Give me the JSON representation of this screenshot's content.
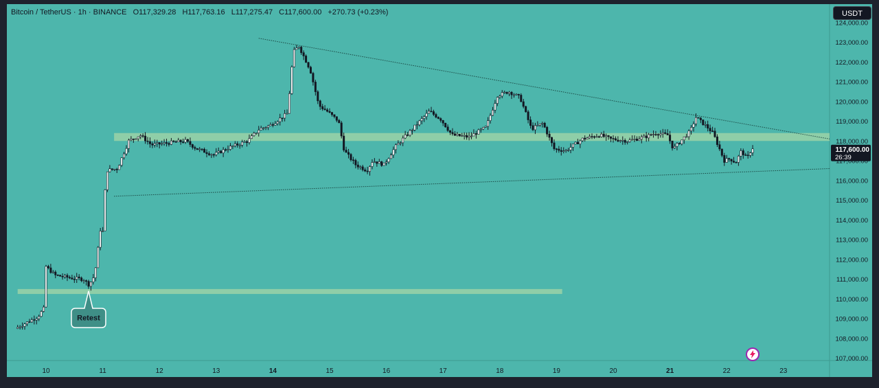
{
  "legend": {
    "symbol": "Bitcoin / TetherUS · 1h · BINANCE",
    "open": "O117,329.28",
    "high": "H117,763.16",
    "low": "L117,275.47",
    "close": "C117,600.00",
    "change": "+270.73 (+0.23%)"
  },
  "currency_button": "USDT",
  "price_label": {
    "price": "117,600.00",
    "countdown": "26:39"
  },
  "annotation": {
    "text": "Retest"
  },
  "colors": {
    "plot_bg": "#4db6ac",
    "frame": "#1e222d",
    "candle": "#131722",
    "zone": "#a5d6a7",
    "trendline": "#1c4a45",
    "axis_text": "#131722"
  },
  "chart_data": {
    "type": "candlestick",
    "symbol": "BTCUSDT",
    "interval": "1h",
    "ylim": [
      106800,
      124000
    ],
    "y_ticks": [
      107000,
      108000,
      109000,
      110000,
      111000,
      112000,
      113000,
      114000,
      115000,
      116000,
      117000,
      118000,
      119000,
      120000,
      121000,
      122000,
      123000,
      124000
    ],
    "y_tick_labels": [
      "107,000.00",
      "108,000.00",
      "109,000.00",
      "110,000.00",
      "111,000.00",
      "112,000.00",
      "113,000.00",
      "114,000.00",
      "115,000.00",
      "116,000.00",
      "117,000.00",
      "118,000.00",
      "119,000.00",
      "120,000.00",
      "121,000.00",
      "122,000.00",
      "123,000.00",
      "124,000.00"
    ],
    "x_ticks": [
      10,
      11,
      12,
      13,
      14,
      15,
      16,
      17,
      18,
      19,
      20,
      21,
      22,
      23
    ],
    "x_tick_labels": [
      "10",
      "11",
      "12",
      "13",
      "14",
      "15",
      "16",
      "17",
      "18",
      "19",
      "20",
      "21",
      "22",
      "23"
    ],
    "bold_x_ticks": [
      "14",
      "21"
    ],
    "price_path": [
      [
        9.5,
        108500
      ],
      [
        9.7,
        108800
      ],
      [
        9.9,
        109100
      ],
      [
        10.0,
        109500
      ],
      [
        10.02,
        111700
      ],
      [
        10.2,
        111200
      ],
      [
        10.5,
        111050
      ],
      [
        10.7,
        111000
      ],
      [
        10.8,
        110700
      ],
      [
        10.9,
        111200
      ],
      [
        11.0,
        113500
      ],
      [
        11.05,
        113400
      ],
      [
        11.1,
        116500
      ],
      [
        11.3,
        116600
      ],
      [
        11.5,
        118000
      ],
      [
        11.7,
        118300
      ],
      [
        11.9,
        117800
      ],
      [
        12.2,
        117900
      ],
      [
        12.5,
        118000
      ],
      [
        12.7,
        117600
      ],
      [
        13.0,
        117300
      ],
      [
        13.3,
        117700
      ],
      [
        13.6,
        118000
      ],
      [
        13.8,
        118600
      ],
      [
        14.0,
        118800
      ],
      [
        14.3,
        119400
      ],
      [
        14.4,
        122500
      ],
      [
        14.5,
        122800
      ],
      [
        14.7,
        121600
      ],
      [
        14.85,
        119800
      ],
      [
        15.0,
        119500
      ],
      [
        15.2,
        119000
      ],
      [
        15.3,
        117500
      ],
      [
        15.5,
        116800
      ],
      [
        15.7,
        116500
      ],
      [
        15.8,
        117000
      ],
      [
        16.0,
        116800
      ],
      [
        16.2,
        117700
      ],
      [
        16.5,
        118600
      ],
      [
        16.8,
        119500
      ],
      [
        17.0,
        119100
      ],
      [
        17.2,
        118300
      ],
      [
        17.5,
        118200
      ],
      [
        17.8,
        118700
      ],
      [
        18.0,
        120300
      ],
      [
        18.2,
        120500
      ],
      [
        18.4,
        120200
      ],
      [
        18.6,
        118600
      ],
      [
        18.8,
        118900
      ],
      [
        19.0,
        117600
      ],
      [
        19.2,
        117500
      ],
      [
        19.5,
        118100
      ],
      [
        19.8,
        118300
      ],
      [
        20.0,
        118100
      ],
      [
        20.3,
        118000
      ],
      [
        20.6,
        118200
      ],
      [
        20.8,
        118400
      ],
      [
        21.0,
        118300
      ],
      [
        21.1,
        117600
      ],
      [
        21.2,
        117900
      ],
      [
        21.4,
        118500
      ],
      [
        21.5,
        119200
      ],
      [
        21.7,
        118700
      ],
      [
        21.8,
        118400
      ],
      [
        22.0,
        117000
      ],
      [
        22.1,
        117100
      ],
      [
        22.2,
        116900
      ],
      [
        22.3,
        117500
      ],
      [
        22.4,
        117100
      ],
      [
        22.48,
        117600
      ]
    ],
    "candle_ranges": {
      "start_x": 9.5,
      "end_x": 22.48,
      "low": 108300,
      "high": 123200
    },
    "support_zones": [
      {
        "y_top": 118400,
        "y_bottom": 118000,
        "x_start": 11.2,
        "x_end": 23.84
      },
      {
        "y_top": 110500,
        "y_bottom": 110250,
        "x_start": 9.5,
        "x_end": 19.1
      }
    ],
    "trendlines": [
      {
        "x1": 13.75,
        "y1": 123200,
        "x2": 23.84,
        "y2": 118100
      },
      {
        "x1": 11.2,
        "y1": 115200,
        "x2": 23.84,
        "y2": 116600
      }
    ],
    "annotations": [
      {
        "text": "Retest",
        "x": 10.75,
        "y": 110400
      }
    ],
    "last_price": 117600
  }
}
